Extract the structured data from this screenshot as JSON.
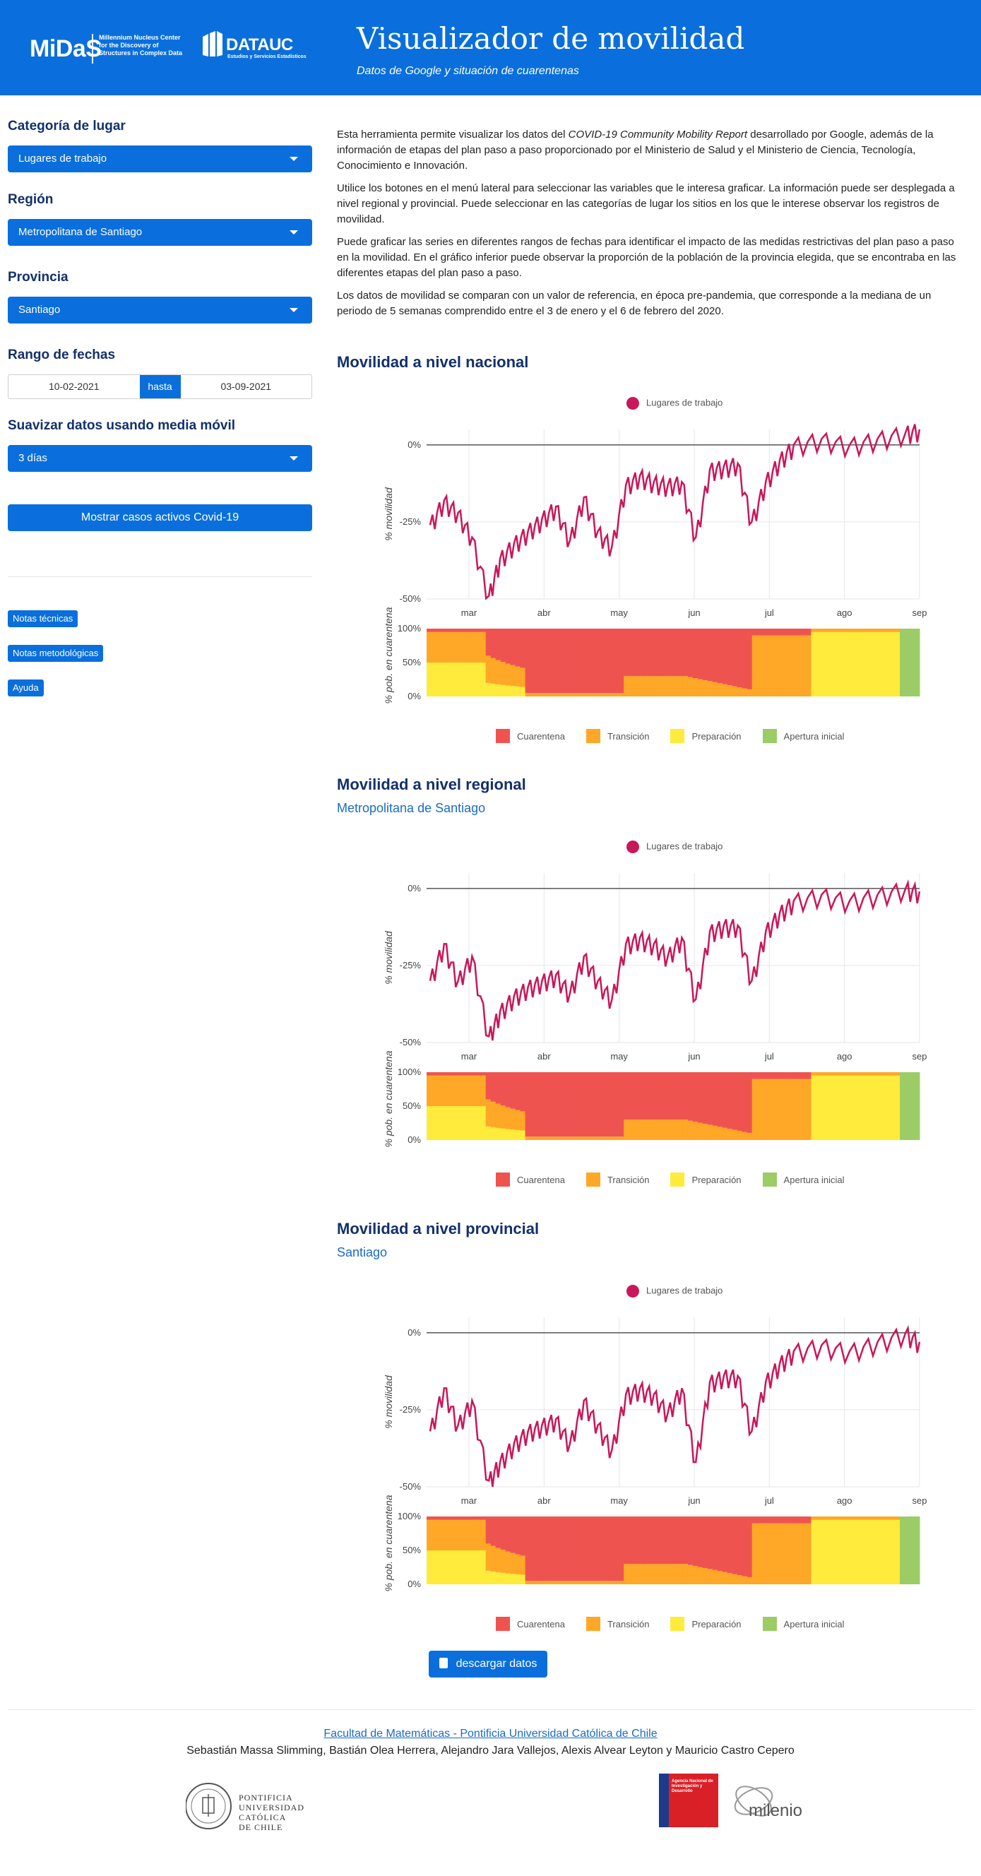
{
  "header": {
    "logo_midas": "MiDaS",
    "logo_midas_sub": "Millennium Nucleus Center for the Discovery of Structures in Complex Data",
    "logo_dataic": "DATAUC",
    "logo_dataic_sub": "Estudios y Servicios Estadísticos",
    "title": "Visualizador de movilidad",
    "subtitle": "Datos de Google y situación de cuarentenas"
  },
  "sidebar": {
    "category_label": "Categoría de lugar",
    "category_value": "Lugares de trabajo",
    "region_label": "Región",
    "region_value": "Metropolitana de Santiago",
    "province_label": "Provincia",
    "province_value": "Santiago",
    "dates_label": "Rango de fechas",
    "date_from": "10-02-2021",
    "date_sep": "hasta",
    "date_to": "03-09-2021",
    "smooth_label": "Suavizar datos usando media móvil",
    "smooth_value": "3 días",
    "covid_button": "Mostrar casos activos Covid-19",
    "notes_tech": "Notas técnicas",
    "notes_method": "Notas metodológicas",
    "help": "Ayuda"
  },
  "intro": {
    "p1_a": "Esta herramienta permite visualizar los datos del ",
    "p1_b": "COVID-19 Community Mobility Report",
    "p1_c": " desarrollado por Google, además de la información de etapas del plan paso a paso proporcionado por el Ministerio de Salud y el Ministerio de Ciencia, Tecnología, Conocimiento e Innovación.",
    "p2": "Utilice los botones en el menú lateral para seleccionar las variables que le interesa graficar. La información puede ser desplegada a nivel regional y provincial. Puede seleccionar en las categorías de lugar los sitios en los que le interese observar los registros de movilidad.",
    "p3": "Puede graficar las series en diferentes rangos de fechas para identificar el impacto de las medidas restrictivas del plan paso a paso en la movilidad. En el gráfico inferior puede observar la proporción de la población de la provincia elegida, que se encontraba en las diferentes etapas del plan paso a paso.",
    "p4": "Los datos de movilidad se comparan con un valor de referencia, en época pre-pandemia, que corresponde a la mediana de un periodo de 5 semanas comprendido entre el 3 de enero y el 6 de febrero del 2020."
  },
  "sections": {
    "national_title": "Movilidad a nivel nacional",
    "regional_title": "Movilidad a nivel regional",
    "regional_sub": "Metropolitana de Santiago",
    "provincial_title": "Movilidad a nivel provincial",
    "provincial_sub": "Santiago"
  },
  "legend": {
    "series": "Lugares de trabajo",
    "phases": [
      "Cuarentena",
      "Transición",
      "Preparación",
      "Apertura inicial"
    ]
  },
  "colors": {
    "accent": "#0a6fdc",
    "series": "#c8175b",
    "cuarentena": "#ef5350",
    "transicion": "#ffa726",
    "preparacion": "#ffeb3b",
    "apertura": "#9ccc65"
  },
  "download_button": "descargar datos",
  "footer": {
    "link": "Facultad de Matemáticas - Pontificia Universidad Católica de Chile",
    "authors": "Sebastián Massa Slimming, Bastián Olea Herrera, Alejandro Jara Vallejos, Alexis Alvear Leyton y Mauricio Castro Cepero",
    "puc": [
      "PONTIFICIA",
      "UNIVERSIDAD",
      "CATÓLICA",
      "DE CHILE"
    ],
    "anid": "Agencia Nacional de Investigación y Desarrollo",
    "milenio": "milenio"
  },
  "chart_data": [
    {
      "type": "line",
      "id": "nacional",
      "ylabel": "% movilidad",
      "ylim": [
        -50,
        5
      ],
      "yticks": [
        "0%",
        "-25%",
        "-50%"
      ],
      "xticks": [
        "mar",
        "abr",
        "may",
        "jun",
        "jul",
        "ago",
        "sep"
      ],
      "series": [
        {
          "name": "Lugares de trabajo",
          "anchors": [
            [
              0,
              -26
            ],
            [
              0.1,
              -18
            ],
            [
              0.2,
              -22
            ],
            [
              0.3,
              -30
            ],
            [
              0.42,
              -49
            ],
            [
              0.5,
              -37
            ],
            [
              0.6,
              -32
            ],
            [
              0.7,
              -28
            ],
            [
              0.8,
              -24
            ],
            [
              0.9,
              -20
            ],
            [
              1.0,
              -31
            ],
            [
              1.1,
              -17
            ],
            [
              1.2,
              -28
            ],
            [
              1.3,
              -33
            ],
            [
              1.4,
              -13
            ],
            [
              1.5,
              -10
            ],
            [
              1.6,
              -12
            ],
            [
              1.7,
              -13
            ],
            [
              1.8,
              -12
            ],
            [
              1.9,
              -30
            ],
            [
              2.0,
              -8
            ],
            [
              2.1,
              -7
            ],
            [
              2.2,
              -6
            ],
            [
              2.3,
              -25
            ],
            [
              2.4,
              -12
            ],
            [
              2.5,
              -5
            ],
            [
              2.6,
              0
            ],
            [
              2.8,
              2
            ],
            [
              3.0,
              0
            ],
            [
              3.2,
              2
            ],
            [
              3.4,
              4
            ],
            [
              3.5,
              5
            ]
          ]
        }
      ],
      "bar": {
        "ylabel": "% pob. en cuarentena",
        "yticks": [
          "100%",
          "50%",
          "0%"
        ]
      }
    },
    {
      "type": "line",
      "id": "regional",
      "ylabel": "% movilidad",
      "ylim": [
        -50,
        5
      ],
      "yticks": [
        "0%",
        "-25%",
        "-50%"
      ],
      "xticks": [
        "mar",
        "abr",
        "may",
        "jun",
        "jul",
        "ago",
        "sep"
      ],
      "series": [
        {
          "name": "Lugares de trabajo",
          "anchors": [
            [
              0,
              -30
            ],
            [
              0.1,
              -18
            ],
            [
              0.2,
              -30
            ],
            [
              0.3,
              -22
            ],
            [
              0.42,
              -48
            ],
            [
              0.5,
              -40
            ],
            [
              0.6,
              -35
            ],
            [
              0.7,
              -32
            ],
            [
              0.8,
              -30
            ],
            [
              0.9,
              -28
            ],
            [
              1.0,
              -34
            ],
            [
              1.1,
              -22
            ],
            [
              1.2,
              -30
            ],
            [
              1.3,
              -36
            ],
            [
              1.4,
              -18
            ],
            [
              1.5,
              -16
            ],
            [
              1.6,
              -18
            ],
            [
              1.7,
              -22
            ],
            [
              1.8,
              -16
            ],
            [
              1.9,
              -36
            ],
            [
              2.0,
              -14
            ],
            [
              2.1,
              -12
            ],
            [
              2.2,
              -12
            ],
            [
              2.3,
              -30
            ],
            [
              2.4,
              -14
            ],
            [
              2.5,
              -8
            ],
            [
              2.6,
              -4
            ],
            [
              2.8,
              -2
            ],
            [
              3.0,
              -4
            ],
            [
              3.2,
              -2
            ],
            [
              3.4,
              0
            ],
            [
              3.5,
              -1
            ]
          ]
        }
      ],
      "bar": {
        "ylabel": "% pob. en cuarentena",
        "yticks": [
          "100%",
          "50%",
          "0%"
        ]
      }
    },
    {
      "type": "line",
      "id": "provincial",
      "ylabel": "% movilidad",
      "ylim": [
        -50,
        5
      ],
      "yticks": [
        "0%",
        "-25%",
        "-50%"
      ],
      "xticks": [
        "mar",
        "abr",
        "may",
        "jun",
        "jul",
        "ago",
        "sep"
      ],
      "series": [
        {
          "name": "Lugares de trabajo",
          "anchors": [
            [
              0,
              -32
            ],
            [
              0.1,
              -18
            ],
            [
              0.2,
              -30
            ],
            [
              0.3,
              -22
            ],
            [
              0.42,
              -48
            ],
            [
              0.5,
              -42
            ],
            [
              0.6,
              -36
            ],
            [
              0.7,
              -32
            ],
            [
              0.8,
              -30
            ],
            [
              0.9,
              -28
            ],
            [
              1.0,
              -36
            ],
            [
              1.1,
              -22
            ],
            [
              1.2,
              -30
            ],
            [
              1.3,
              -38
            ],
            [
              1.4,
              -20
            ],
            [
              1.5,
              -18
            ],
            [
              1.6,
              -20
            ],
            [
              1.7,
              -26
            ],
            [
              1.8,
              -18
            ],
            [
              1.9,
              -42
            ],
            [
              2.0,
              -16
            ],
            [
              2.1,
              -14
            ],
            [
              2.2,
              -14
            ],
            [
              2.3,
              -32
            ],
            [
              2.4,
              -16
            ],
            [
              2.5,
              -10
            ],
            [
              2.6,
              -6
            ],
            [
              2.8,
              -4
            ],
            [
              3.0,
              -6
            ],
            [
              3.2,
              -3
            ],
            [
              3.4,
              0
            ],
            [
              3.5,
              -3
            ]
          ]
        }
      ],
      "bar": {
        "ylabel": "% pob. en cuarentena",
        "yticks": [
          "100%",
          "50%",
          "0%"
        ]
      }
    }
  ]
}
